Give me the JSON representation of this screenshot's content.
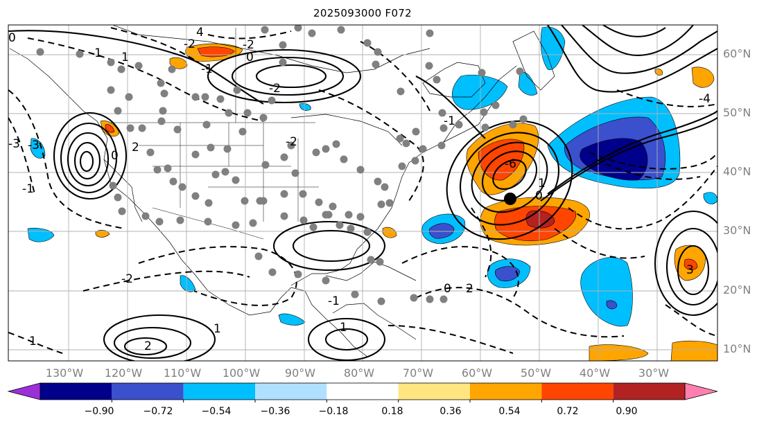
{
  "title": "2025093000 F072",
  "lat_labels": [
    "60°N",
    "50°N",
    "40°N",
    "30°N",
    "20°N",
    "10°N"
  ],
  "lon_labels": [
    "130°W",
    "120°W",
    "110°W",
    "100°W",
    "90°W",
    "80°W",
    "70°W",
    "60°W",
    "50°W",
    "40°W",
    "30°W"
  ],
  "colorbar": {
    "ticks": [
      "−0.90",
      "−0.72",
      "−0.54",
      "−0.36",
      "−0.18",
      "0.18",
      "0.36",
      "0.54",
      "0.72",
      "0.90"
    ],
    "colors": [
      "#9b30d9",
      "#00008b",
      "#3a50cc",
      "#00bfff",
      "#b0e0ff",
      "#ffffff",
      "#ffe680",
      "#ffa500",
      "#ff4500",
      "#b22222",
      "#ff80b0"
    ]
  },
  "colors": {
    "gridline": "#b0b0b0",
    "station_dot": "#808080",
    "contour": "#000000",
    "positive_strong": "#ff4500",
    "positive": "#ffa500",
    "negative": "#00bfff",
    "negative_strong": "#3a50cc",
    "negative_extreme": "#00008b"
  },
  "contour_labels": [
    "4",
    "0",
    "1",
    "-2",
    "0",
    "-3",
    "2",
    "-1",
    "-3",
    "0",
    "-2",
    "-2",
    "-6",
    "1",
    "0",
    "-4",
    "3",
    "-2",
    "0",
    "-1",
    "-2",
    "-1",
    "-1",
    "2",
    "1",
    "1",
    "2",
    "-1",
    "1"
  ]
}
